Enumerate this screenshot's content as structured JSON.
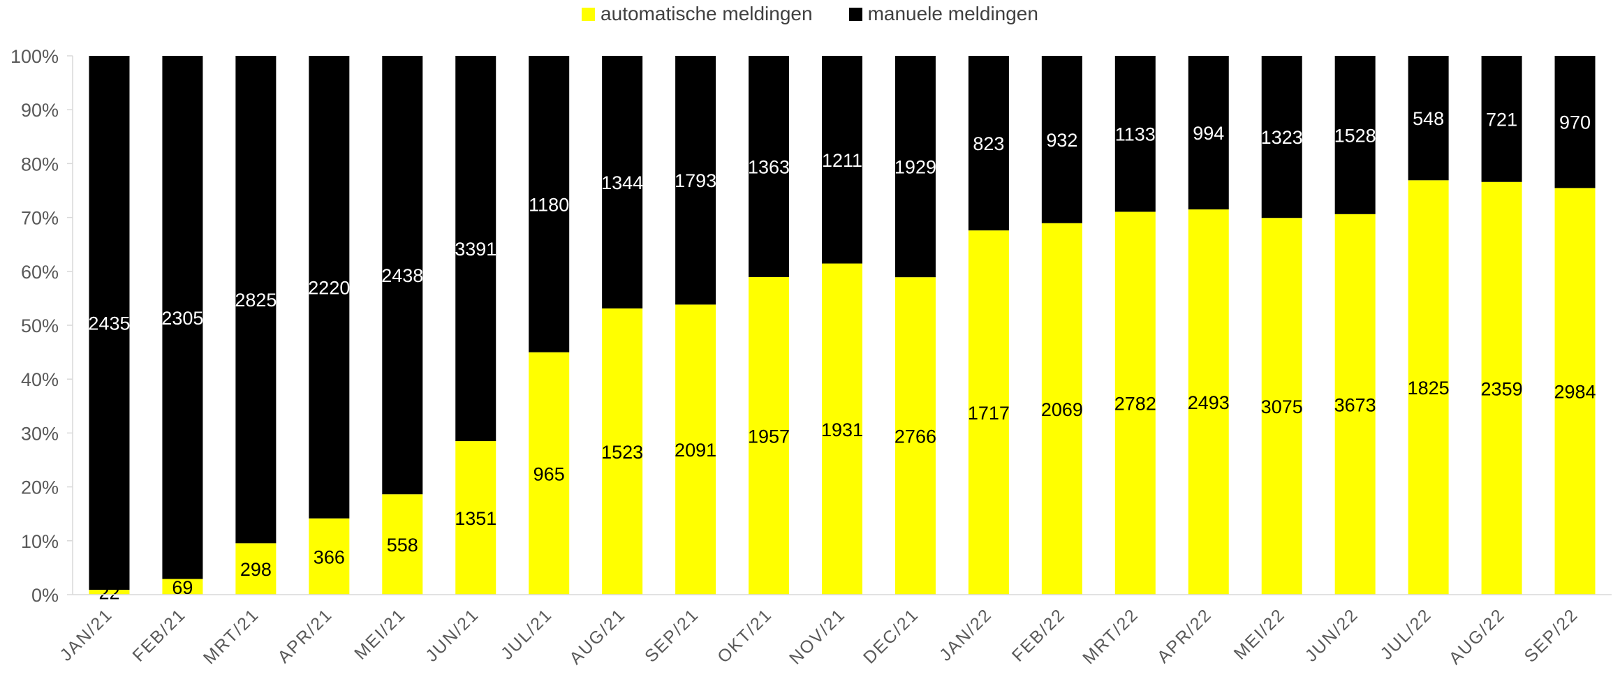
{
  "chart_data": {
    "type": "bar",
    "stacked": true,
    "normalized": true,
    "categories": [
      "JAN/21",
      "FEB/21",
      "MRT/21",
      "APR/21",
      "MEI/21",
      "JUN/21",
      "JUL/21",
      "AUG/21",
      "SEP/21",
      "OKT/21",
      "NOV/21",
      "DEC/21",
      "JAN/22",
      "FEB/22",
      "MRT/22",
      "APR/22",
      "MEI/22",
      "JUN/22",
      "JUL/22",
      "AUG/22",
      "SEP/22"
    ],
    "series": [
      {
        "name": "automatische meldingen",
        "color": "#ffff00",
        "label_color": "#000000",
        "values": [
          22,
          69,
          298,
          366,
          558,
          1351,
          965,
          1523,
          2091,
          1957,
          1931,
          2766,
          1717,
          2069,
          2782,
          2493,
          3075,
          3673,
          1825,
          2359,
          2984
        ]
      },
      {
        "name": "manuele meldingen",
        "color": "#000000",
        "label_color": "#ffffff",
        "values": [
          2435,
          2305,
          2825,
          2220,
          2438,
          3391,
          1180,
          1344,
          1793,
          1363,
          1211,
          1929,
          823,
          932,
          1133,
          994,
          1323,
          1528,
          548,
          721,
          970
        ]
      }
    ],
    "yticks": [
      "0%",
      "10%",
      "20%",
      "30%",
      "40%",
      "50%",
      "60%",
      "70%",
      "80%",
      "90%",
      "100%"
    ],
    "ylim": [
      0,
      100
    ],
    "legend_position": "top-center",
    "grid": false
  }
}
